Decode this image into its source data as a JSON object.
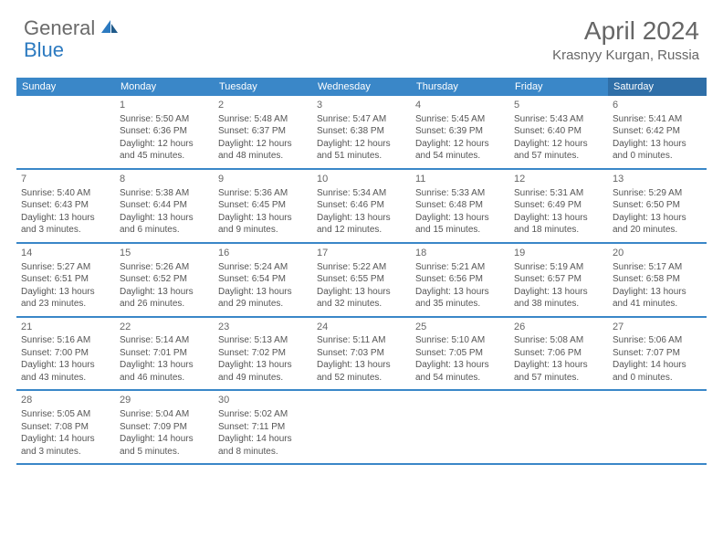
{
  "logo": {
    "part1": "General",
    "part2": "Blue"
  },
  "title": "April 2024",
  "location": "Krasnyy Kurgan, Russia",
  "colors": {
    "header_bg": "#3a87c8",
    "saturday_bg": "#2f6fa8",
    "header_text": "#ffffff",
    "divider": "#3a87c8",
    "body_text": "#555555",
    "day_num": "#666666",
    "title_text": "#666666",
    "logo_gray": "#6a6a6a",
    "logo_blue": "#2c7ac0",
    "background": "#ffffff"
  },
  "fonts": {
    "title_size": 28,
    "location_size": 15,
    "weekday_size": 11,
    "daynum_size": 11,
    "body_size": 10
  },
  "weekdays": [
    "Sunday",
    "Monday",
    "Tuesday",
    "Wednesday",
    "Thursday",
    "Friday",
    "Saturday"
  ],
  "weeks": [
    [
      {
        "num": "",
        "sunrise": "",
        "sunset": "",
        "daylight": ""
      },
      {
        "num": "1",
        "sunrise": "Sunrise: 5:50 AM",
        "sunset": "Sunset: 6:36 PM",
        "daylight": "Daylight: 12 hours and 45 minutes."
      },
      {
        "num": "2",
        "sunrise": "Sunrise: 5:48 AM",
        "sunset": "Sunset: 6:37 PM",
        "daylight": "Daylight: 12 hours and 48 minutes."
      },
      {
        "num": "3",
        "sunrise": "Sunrise: 5:47 AM",
        "sunset": "Sunset: 6:38 PM",
        "daylight": "Daylight: 12 hours and 51 minutes."
      },
      {
        "num": "4",
        "sunrise": "Sunrise: 5:45 AM",
        "sunset": "Sunset: 6:39 PM",
        "daylight": "Daylight: 12 hours and 54 minutes."
      },
      {
        "num": "5",
        "sunrise": "Sunrise: 5:43 AM",
        "sunset": "Sunset: 6:40 PM",
        "daylight": "Daylight: 12 hours and 57 minutes."
      },
      {
        "num": "6",
        "sunrise": "Sunrise: 5:41 AM",
        "sunset": "Sunset: 6:42 PM",
        "daylight": "Daylight: 13 hours and 0 minutes."
      }
    ],
    [
      {
        "num": "7",
        "sunrise": "Sunrise: 5:40 AM",
        "sunset": "Sunset: 6:43 PM",
        "daylight": "Daylight: 13 hours and 3 minutes."
      },
      {
        "num": "8",
        "sunrise": "Sunrise: 5:38 AM",
        "sunset": "Sunset: 6:44 PM",
        "daylight": "Daylight: 13 hours and 6 minutes."
      },
      {
        "num": "9",
        "sunrise": "Sunrise: 5:36 AM",
        "sunset": "Sunset: 6:45 PM",
        "daylight": "Daylight: 13 hours and 9 minutes."
      },
      {
        "num": "10",
        "sunrise": "Sunrise: 5:34 AM",
        "sunset": "Sunset: 6:46 PM",
        "daylight": "Daylight: 13 hours and 12 minutes."
      },
      {
        "num": "11",
        "sunrise": "Sunrise: 5:33 AM",
        "sunset": "Sunset: 6:48 PM",
        "daylight": "Daylight: 13 hours and 15 minutes."
      },
      {
        "num": "12",
        "sunrise": "Sunrise: 5:31 AM",
        "sunset": "Sunset: 6:49 PM",
        "daylight": "Daylight: 13 hours and 18 minutes."
      },
      {
        "num": "13",
        "sunrise": "Sunrise: 5:29 AM",
        "sunset": "Sunset: 6:50 PM",
        "daylight": "Daylight: 13 hours and 20 minutes."
      }
    ],
    [
      {
        "num": "14",
        "sunrise": "Sunrise: 5:27 AM",
        "sunset": "Sunset: 6:51 PM",
        "daylight": "Daylight: 13 hours and 23 minutes."
      },
      {
        "num": "15",
        "sunrise": "Sunrise: 5:26 AM",
        "sunset": "Sunset: 6:52 PM",
        "daylight": "Daylight: 13 hours and 26 minutes."
      },
      {
        "num": "16",
        "sunrise": "Sunrise: 5:24 AM",
        "sunset": "Sunset: 6:54 PM",
        "daylight": "Daylight: 13 hours and 29 minutes."
      },
      {
        "num": "17",
        "sunrise": "Sunrise: 5:22 AM",
        "sunset": "Sunset: 6:55 PM",
        "daylight": "Daylight: 13 hours and 32 minutes."
      },
      {
        "num": "18",
        "sunrise": "Sunrise: 5:21 AM",
        "sunset": "Sunset: 6:56 PM",
        "daylight": "Daylight: 13 hours and 35 minutes."
      },
      {
        "num": "19",
        "sunrise": "Sunrise: 5:19 AM",
        "sunset": "Sunset: 6:57 PM",
        "daylight": "Daylight: 13 hours and 38 minutes."
      },
      {
        "num": "20",
        "sunrise": "Sunrise: 5:17 AM",
        "sunset": "Sunset: 6:58 PM",
        "daylight": "Daylight: 13 hours and 41 minutes."
      }
    ],
    [
      {
        "num": "21",
        "sunrise": "Sunrise: 5:16 AM",
        "sunset": "Sunset: 7:00 PM",
        "daylight": "Daylight: 13 hours and 43 minutes."
      },
      {
        "num": "22",
        "sunrise": "Sunrise: 5:14 AM",
        "sunset": "Sunset: 7:01 PM",
        "daylight": "Daylight: 13 hours and 46 minutes."
      },
      {
        "num": "23",
        "sunrise": "Sunrise: 5:13 AM",
        "sunset": "Sunset: 7:02 PM",
        "daylight": "Daylight: 13 hours and 49 minutes."
      },
      {
        "num": "24",
        "sunrise": "Sunrise: 5:11 AM",
        "sunset": "Sunset: 7:03 PM",
        "daylight": "Daylight: 13 hours and 52 minutes."
      },
      {
        "num": "25",
        "sunrise": "Sunrise: 5:10 AM",
        "sunset": "Sunset: 7:05 PM",
        "daylight": "Daylight: 13 hours and 54 minutes."
      },
      {
        "num": "26",
        "sunrise": "Sunrise: 5:08 AM",
        "sunset": "Sunset: 7:06 PM",
        "daylight": "Daylight: 13 hours and 57 minutes."
      },
      {
        "num": "27",
        "sunrise": "Sunrise: 5:06 AM",
        "sunset": "Sunset: 7:07 PM",
        "daylight": "Daylight: 14 hours and 0 minutes."
      }
    ],
    [
      {
        "num": "28",
        "sunrise": "Sunrise: 5:05 AM",
        "sunset": "Sunset: 7:08 PM",
        "daylight": "Daylight: 14 hours and 3 minutes."
      },
      {
        "num": "29",
        "sunrise": "Sunrise: 5:04 AM",
        "sunset": "Sunset: 7:09 PM",
        "daylight": "Daylight: 14 hours and 5 minutes."
      },
      {
        "num": "30",
        "sunrise": "Sunrise: 5:02 AM",
        "sunset": "Sunset: 7:11 PM",
        "daylight": "Daylight: 14 hours and 8 minutes."
      },
      {
        "num": "",
        "sunrise": "",
        "sunset": "",
        "daylight": ""
      },
      {
        "num": "",
        "sunrise": "",
        "sunset": "",
        "daylight": ""
      },
      {
        "num": "",
        "sunrise": "",
        "sunset": "",
        "daylight": ""
      },
      {
        "num": "",
        "sunrise": "",
        "sunset": "",
        "daylight": ""
      }
    ]
  ]
}
